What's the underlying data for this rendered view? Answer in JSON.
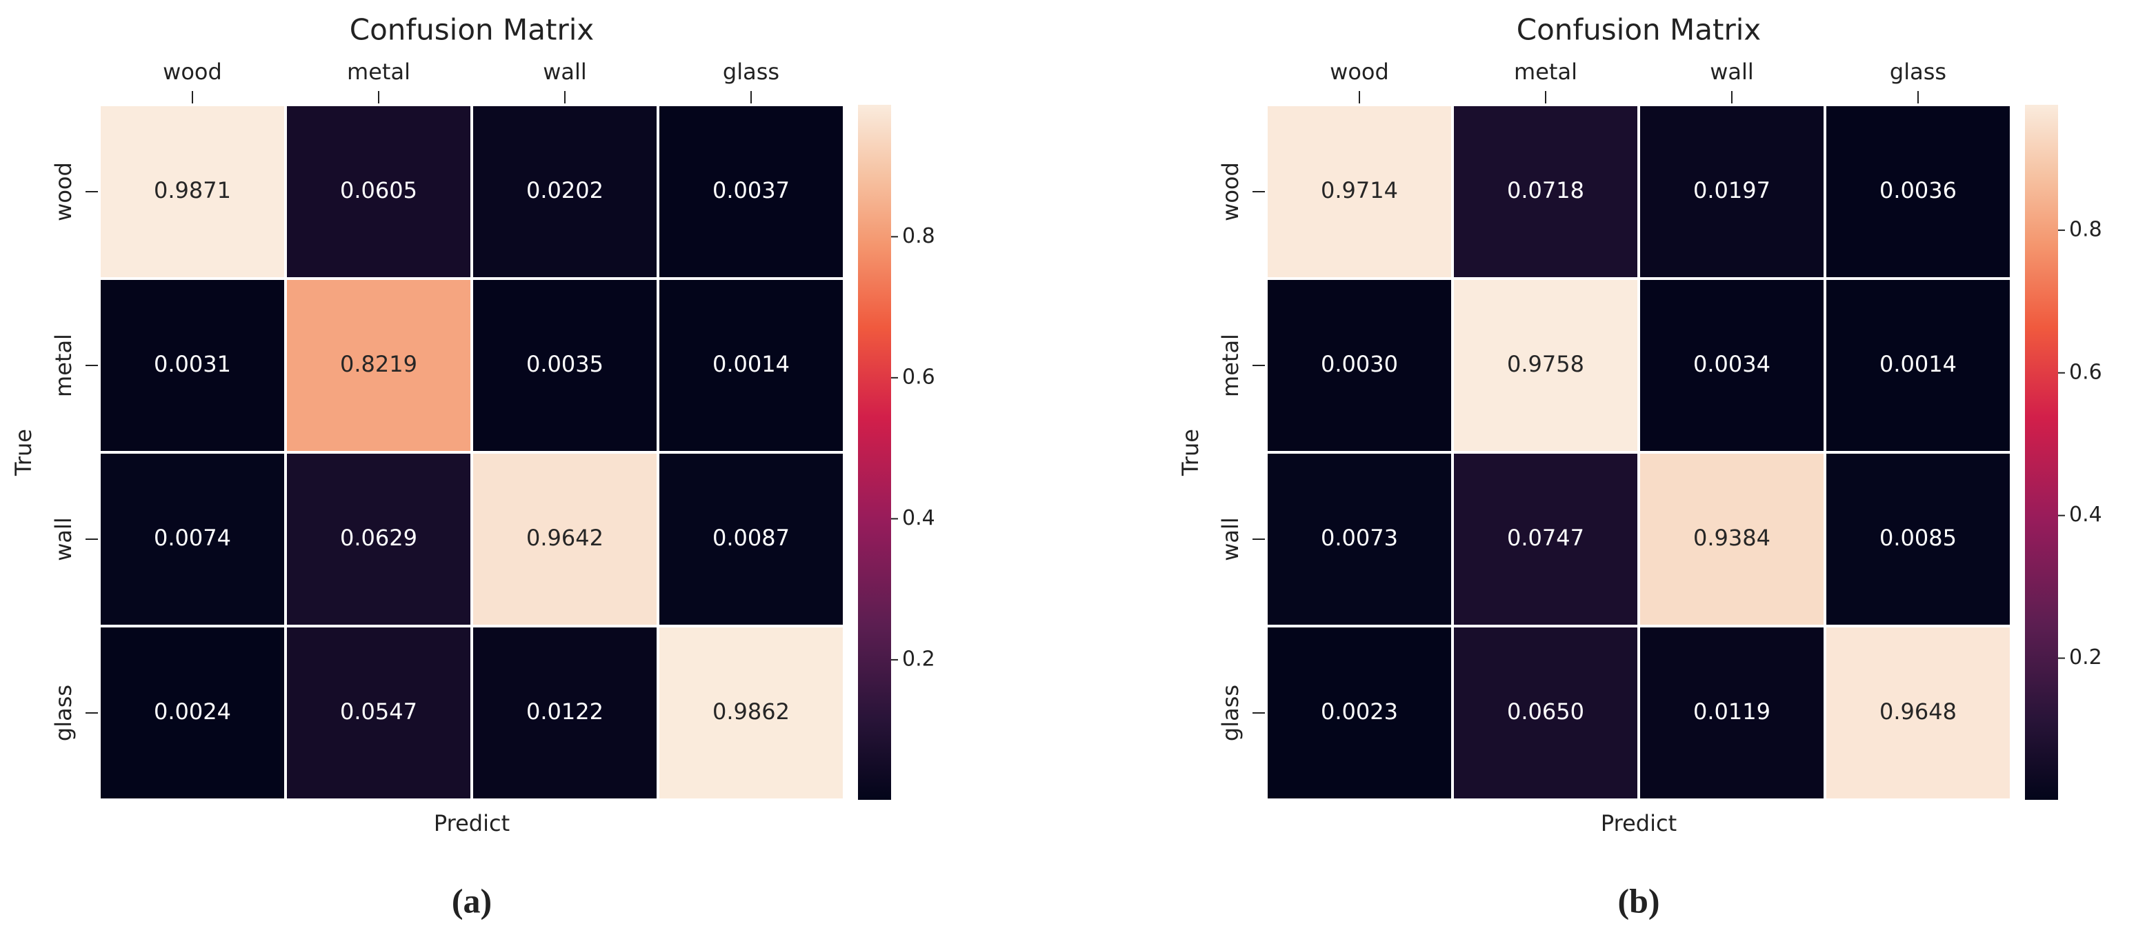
{
  "chart_data": [
    {
      "type": "heatmap",
      "title": "Confusion Matrix",
      "x_label": "Predict",
      "y_label": "True",
      "caption": "(a)",
      "x_categories": [
        "wood",
        "metal",
        "wall",
        "glass"
      ],
      "y_categories": [
        "wood",
        "metal",
        "wall",
        "glass"
      ],
      "values": [
        [
          0.9871,
          0.0605,
          0.0202,
          0.0037
        ],
        [
          0.0031,
          0.8219,
          0.0035,
          0.0014
        ],
        [
          0.0074,
          0.0629,
          0.9642,
          0.0087
        ],
        [
          0.0024,
          0.0547,
          0.0122,
          0.9862
        ]
      ],
      "value_labels": [
        [
          "0.9871",
          "0.0605",
          "0.0202",
          "0.0037"
        ],
        [
          "0.0031",
          "0.8219",
          "0.0035",
          "0.0014"
        ],
        [
          "0.0074",
          "0.0629",
          "0.9642",
          "0.0087"
        ],
        [
          "0.0024",
          "0.0547",
          "0.0122",
          "0.9862"
        ]
      ],
      "colormap": "rocket",
      "clim": [
        0.0014,
        0.9871
      ],
      "cticks": [
        0.2,
        0.4,
        0.6,
        0.8
      ]
    },
    {
      "type": "heatmap",
      "title": "Confusion Matrix",
      "x_label": "Predict",
      "y_label": "True",
      "caption": "(b)",
      "x_categories": [
        "wood",
        "metal",
        "wall",
        "glass"
      ],
      "y_categories": [
        "wood",
        "metal",
        "wall",
        "glass"
      ],
      "values": [
        [
          0.9714,
          0.0718,
          0.0197,
          0.0036
        ],
        [
          0.003,
          0.9758,
          0.0034,
          0.0014
        ],
        [
          0.0073,
          0.0747,
          0.9384,
          0.0085
        ],
        [
          0.0023,
          0.065,
          0.0119,
          0.9648
        ]
      ],
      "value_labels": [
        [
          "0.9714",
          "0.0718",
          "0.0197",
          "0.0036"
        ],
        [
          "0.0030",
          "0.9758",
          "0.0034",
          "0.0014"
        ],
        [
          "0.0073",
          "0.0747",
          "0.9384",
          "0.0085"
        ],
        [
          "0.0023",
          "0.0650",
          "0.0119",
          "0.9648"
        ]
      ],
      "colormap": "rocket",
      "clim": [
        0.0014,
        0.9758
      ],
      "cticks": [
        0.2,
        0.4,
        0.6,
        0.8
      ]
    }
  ]
}
